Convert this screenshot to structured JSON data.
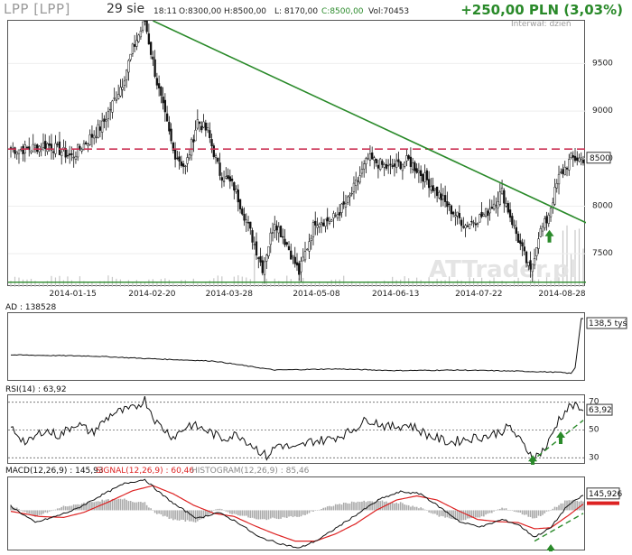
{
  "header": {
    "symbol": "LPP [LPP]",
    "date": "29 sie",
    "time": "18:11",
    "open": "O:8300,00",
    "high": "H:8500,00",
    "low": "L: 8170,00",
    "close": "C:8500,00",
    "volume": "Vol:70453",
    "change": "+250,00 PLN (3,03%)",
    "interval": "Interwał: dzień"
  },
  "watermark": "ATTrader.pl",
  "colors": {
    "up": "#2a8a2a",
    "down": "#111111",
    "trend": "#2a8a2a",
    "resistance": "#cc3355",
    "signal": "#dd2222",
    "histogram": "#aaaaaa",
    "accent_price": "#333333"
  },
  "chart_data": [
    {
      "type": "candlestick",
      "name": "price",
      "x_dates": [
        "2014-01-15",
        "2014-02-20",
        "2014-03-28",
        "2014-05-08",
        "2014-06-13",
        "2014-07-22",
        "2014-08-28"
      ],
      "y_ticks": [
        7500,
        8000,
        8500,
        9000,
        9500
      ],
      "ylim": [
        7150,
        9950
      ],
      "last_price_label": "8500",
      "close_anchors": [
        [
          0,
          8600
        ],
        [
          8,
          8600
        ],
        [
          18,
          8650
        ],
        [
          30,
          8520
        ],
        [
          45,
          8850
        ],
        [
          55,
          9300
        ],
        [
          60,
          9650
        ],
        [
          66,
          9950
        ],
        [
          72,
          9300
        ],
        [
          80,
          8580
        ],
        [
          86,
          8400
        ],
        [
          92,
          8900
        ],
        [
          97,
          8780
        ],
        [
          103,
          8350
        ],
        [
          110,
          8200
        ],
        [
          116,
          7850
        ],
        [
          124,
          7350
        ],
        [
          130,
          7850
        ],
        [
          136,
          7600
        ],
        [
          142,
          7300
        ],
        [
          150,
          7850
        ],
        [
          158,
          7850
        ],
        [
          166,
          8050
        ],
        [
          176,
          8500
        ],
        [
          186,
          8400
        ],
        [
          196,
          8480
        ],
        [
          206,
          8250
        ],
        [
          216,
          7980
        ],
        [
          224,
          7800
        ],
        [
          234,
          7920
        ],
        [
          242,
          8150
        ],
        [
          250,
          7650
        ],
        [
          256,
          7300
        ],
        [
          260,
          7700
        ],
        [
          264,
          7850
        ],
        [
          270,
          8300
        ],
        [
          276,
          8500
        ]
      ],
      "resistance_level": 8600,
      "support_level": 7200,
      "trendline": [
        [
          70,
          9950
        ],
        [
          294,
          7720
        ]
      ],
      "arrow_at": 264
    },
    {
      "type": "line",
      "name": "AD",
      "label": "AD : 138528",
      "last_value_label": "138,5 tyś",
      "values": [
        [
          0,
          0.35
        ],
        [
          40,
          0.33
        ],
        [
          70,
          0.28
        ],
        [
          100,
          0.24
        ],
        [
          130,
          0.08
        ],
        [
          160,
          0.1
        ],
        [
          190,
          0.07
        ],
        [
          220,
          0.08
        ],
        [
          250,
          0.06
        ],
        [
          270,
          0.04
        ],
        [
          276,
          0.02
        ],
        [
          278,
          0.12
        ],
        [
          281,
          1.0
        ]
      ]
    },
    {
      "type": "line",
      "name": "RSI(14)",
      "label": "RSI(14) : 63,92",
      "last_value_label": "63,92",
      "y_ticks": [
        30,
        50,
        70
      ],
      "ylim": [
        25,
        75
      ],
      "anchors": [
        [
          0,
          52
        ],
        [
          8,
          40
        ],
        [
          16,
          50
        ],
        [
          24,
          46
        ],
        [
          32,
          55
        ],
        [
          40,
          48
        ],
        [
          50,
          62
        ],
        [
          60,
          65
        ],
        [
          66,
          72
        ],
        [
          72,
          55
        ],
        [
          80,
          45
        ],
        [
          88,
          54
        ],
        [
          96,
          50
        ],
        [
          104,
          44
        ],
        [
          112,
          47
        ],
        [
          120,
          38
        ],
        [
          126,
          31
        ],
        [
          132,
          40
        ],
        [
          140,
          36
        ],
        [
          148,
          42
        ],
        [
          156,
          43
        ],
        [
          166,
          48
        ],
        [
          176,
          58
        ],
        [
          186,
          52
        ],
        [
          196,
          54
        ],
        [
          206,
          46
        ],
        [
          216,
          41
        ],
        [
          226,
          44
        ],
        [
          236,
          46
        ],
        [
          246,
          52
        ],
        [
          252,
          40
        ],
        [
          258,
          30
        ],
        [
          264,
          38
        ],
        [
          270,
          58
        ],
        [
          276,
          68
        ],
        [
          282,
          63.92
        ]
      ],
      "arrows_at": [
        258,
        270
      ]
    },
    {
      "type": "macd",
      "name": "MACD(12,26,9)",
      "labels": {
        "macd": "MACD(12,26,9) : 145,93",
        "signal": "SIGNAL(12,26,9) : 60,46",
        "histogram": "HISTOGRAM(12,26,9) : 85,46"
      },
      "last_value_label": "145,926",
      "macd_anchors": [
        [
          0,
          40
        ],
        [
          12,
          -120
        ],
        [
          22,
          -60
        ],
        [
          32,
          10
        ],
        [
          44,
          140
        ],
        [
          56,
          260
        ],
        [
          66,
          300
        ],
        [
          74,
          160
        ],
        [
          82,
          40
        ],
        [
          92,
          -80
        ],
        [
          102,
          -20
        ],
        [
          112,
          -120
        ],
        [
          122,
          -260
        ],
        [
          132,
          -320
        ],
        [
          142,
          -370
        ],
        [
          152,
          -280
        ],
        [
          162,
          -150
        ],
        [
          172,
          -20
        ],
        [
          182,
          110
        ],
        [
          192,
          180
        ],
        [
          202,
          160
        ],
        [
          212,
          20
        ],
        [
          222,
          -120
        ],
        [
          232,
          -160
        ],
        [
          242,
          -90
        ],
        [
          250,
          -140
        ],
        [
          258,
          -260
        ],
        [
          266,
          -170
        ],
        [
          274,
          40
        ],
        [
          282,
          146
        ]
      ],
      "signal_anchors": [
        [
          0,
          -10
        ],
        [
          14,
          -60
        ],
        [
          26,
          -70
        ],
        [
          36,
          -20
        ],
        [
          48,
          80
        ],
        [
          60,
          190
        ],
        [
          70,
          240
        ],
        [
          80,
          160
        ],
        [
          90,
          50
        ],
        [
          100,
          -30
        ],
        [
          110,
          -60
        ],
        [
          120,
          -150
        ],
        [
          130,
          -230
        ],
        [
          140,
          -300
        ],
        [
          150,
          -300
        ],
        [
          160,
          -230
        ],
        [
          170,
          -130
        ],
        [
          180,
          0
        ],
        [
          190,
          100
        ],
        [
          200,
          140
        ],
        [
          210,
          100
        ],
        [
          220,
          0
        ],
        [
          230,
          -90
        ],
        [
          240,
          -110
        ],
        [
          250,
          -120
        ],
        [
          258,
          -180
        ],
        [
          266,
          -170
        ],
        [
          274,
          -60
        ],
        [
          282,
          60
        ]
      ],
      "ylim": [
        -400,
        320
      ],
      "arrow_at": 266
    }
  ]
}
